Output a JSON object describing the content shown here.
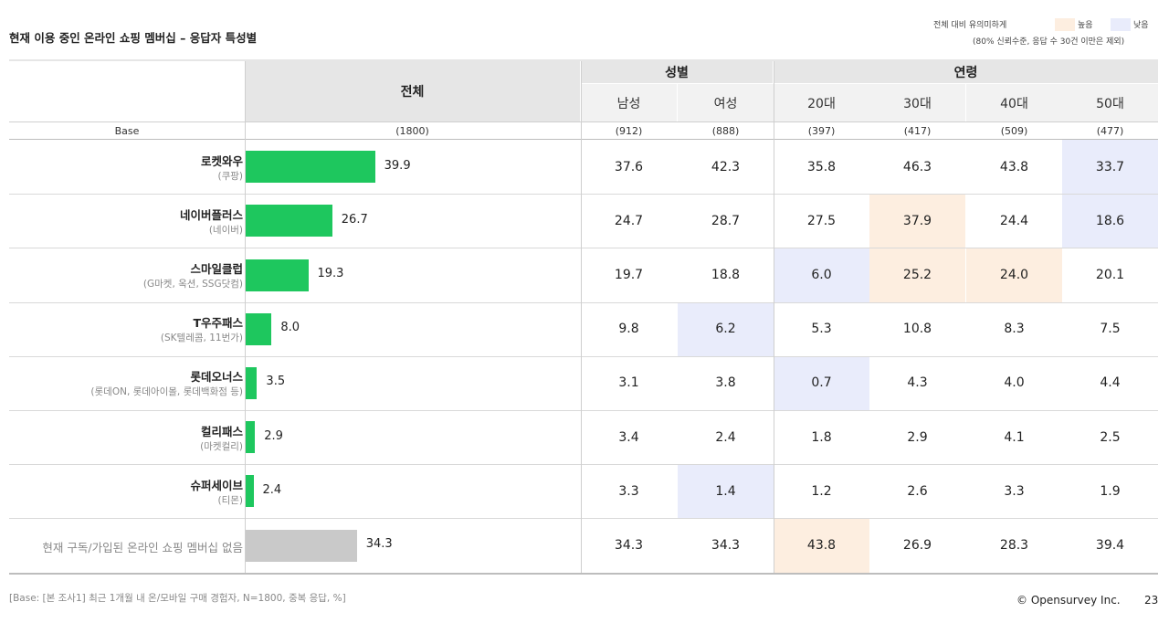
{
  "title": "현재 이용 중인 온라인 쇼핑 멤버십 – 응답자 특성별",
  "legend": {
    "note": "전체 대비 유의미하게",
    "high_label": "높음",
    "low_label": "낮음",
    "sub": "(80% 신뢰수준, 응답 수 30건 이만은 제외)",
    "high_color": "#fdeee0",
    "low_color": "#e9ecfb"
  },
  "header": {
    "total": "전체",
    "gender": "성별",
    "age": "연령",
    "columns": [
      "남성",
      "여성",
      "20대",
      "30대",
      "40대",
      "50대"
    ]
  },
  "base": {
    "label": "Base",
    "total": "(1800)",
    "values": [
      "(912)",
      "(888)",
      "(397)",
      "(417)",
      "(509)",
      "(477)"
    ]
  },
  "chart_data": {
    "type": "table",
    "xlim": [
      0,
      100
    ],
    "rows": [
      {
        "name": "로켓와우",
        "sub": "(쿠팡)",
        "total": 39.9,
        "values": [
          37.6,
          42.3,
          35.8,
          46.3,
          43.8,
          33.7
        ],
        "marks": [
          "",
          "",
          "",
          "",
          "",
          "low"
        ]
      },
      {
        "name": "네이버플러스",
        "sub": "(네이버)",
        "total": 26.7,
        "values": [
          24.7,
          28.7,
          27.5,
          37.9,
          24.4,
          18.6
        ],
        "marks": [
          "",
          "",
          "",
          "high",
          "",
          "low"
        ]
      },
      {
        "name": "스마일클럽",
        "sub": "(G마켓, 옥션, SSG닷컴)",
        "total": 19.3,
        "values": [
          19.7,
          18.8,
          6.0,
          25.2,
          24.0,
          20.1
        ],
        "marks": [
          "",
          "",
          "low",
          "high",
          "high",
          ""
        ]
      },
      {
        "name": "T우주패스",
        "sub": "(SK텔레콤, 11번가)",
        "total": 8.0,
        "values": [
          9.8,
          6.2,
          5.3,
          10.8,
          8.3,
          7.5
        ],
        "marks": [
          "",
          "low",
          "",
          "",
          "",
          ""
        ]
      },
      {
        "name": "롯데오너스",
        "sub": "(롯데ON, 롯데아이몰, 롯데백화점 등)",
        "total": 3.5,
        "values": [
          3.1,
          3.8,
          0.7,
          4.3,
          4.0,
          4.4
        ],
        "marks": [
          "",
          "",
          "low",
          "",
          "",
          ""
        ]
      },
      {
        "name": "컬리패스",
        "sub": "(마켓컬리)",
        "total": 2.9,
        "values": [
          3.4,
          2.4,
          1.8,
          2.9,
          4.1,
          2.5
        ],
        "marks": [
          "",
          "",
          "",
          "",
          "",
          ""
        ]
      },
      {
        "name": "슈퍼세이브",
        "sub": "(티몬)",
        "total": 2.4,
        "values": [
          3.3,
          1.4,
          1.2,
          2.6,
          3.3,
          1.9
        ],
        "marks": [
          "",
          "low",
          "",
          "",
          "",
          ""
        ]
      },
      {
        "name": "현재 구독/가입된 온라인 쇼핑 멤버십 없음",
        "sub": "",
        "total": 34.3,
        "values": [
          34.3,
          34.3,
          43.8,
          26.9,
          28.3,
          39.4
        ],
        "marks": [
          "",
          "",
          "high",
          "",
          "",
          ""
        ],
        "none": true
      }
    ],
    "bar_color": "#1ec75e",
    "none_bar_color": "#c9c9c9"
  },
  "footer": {
    "note": "[Base: [본 조사1] 최근 1개월 내 온/모바일 구매 경험자, N=1800, 중복 응답, %]",
    "copyright": "© Opensurvey Inc.",
    "page": "23"
  }
}
